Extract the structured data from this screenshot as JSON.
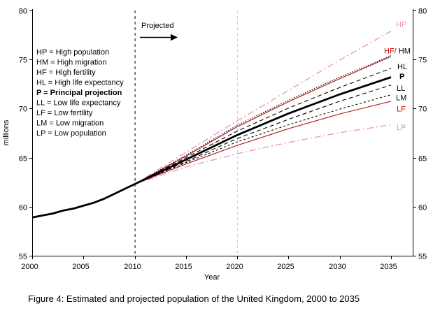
{
  "figure": {
    "caption": "Figure 4: Estimated and projected population of the United Kingdom, 2000 to 2035"
  },
  "colors": {
    "black": "#000000",
    "red_line": "#b22222",
    "red_label": "#cc0000",
    "pink": "#ef8fc0",
    "guide_2010": "#000000",
    "guide_2020": "#c8c8c8"
  },
  "chart_data": {
    "type": "line",
    "title": "",
    "xlabel": "Year",
    "ylabel": "millions",
    "xlim": [
      2000,
      2037
    ],
    "ylim": [
      55,
      80
    ],
    "xticks": [
      2000,
      2005,
      2010,
      2015,
      2020,
      2025,
      2030,
      2035
    ],
    "yticks": [
      55,
      60,
      65,
      70,
      75,
      80
    ],
    "grid": false,
    "annotations": {
      "projected_label": "Projected",
      "vlines": [
        {
          "year": 2010,
          "color_key": "guide_2010",
          "style": "dashed"
        },
        {
          "year": 2020,
          "color_key": "guide_2020",
          "style": "dashed"
        }
      ]
    },
    "legend_position": "upper-left-inside",
    "legend": [
      {
        "text": "HP = High population",
        "bold": false
      },
      {
        "text": "HM = High migration",
        "bold": false
      },
      {
        "text": "HF = High fertility",
        "bold": false
      },
      {
        "text": "HL = High life expectancy",
        "bold": false
      },
      {
        "text": "P = Principal projection",
        "bold": true
      },
      {
        "text": "LL = Low life expectancy",
        "bold": false
      },
      {
        "text": "LF = Low fertility",
        "bold": false
      },
      {
        "text": "LM = Low migration",
        "bold": false
      },
      {
        "text": "LP = Low population",
        "bold": false
      }
    ],
    "series": [
      {
        "name": "HP",
        "x": [
          2010,
          2015,
          2020,
          2025,
          2030,
          2035
        ],
        "values": [
          62.3,
          65.55,
          68.75,
          71.85,
          74.95,
          77.9
        ],
        "color_key": "pink",
        "line_style": "dash-dot",
        "width": 1.3
      },
      {
        "name": "LP",
        "x": [
          2010,
          2015,
          2020,
          2025,
          2030,
          2035
        ],
        "values": [
          62.3,
          64.05,
          65.4,
          66.55,
          67.55,
          68.35
        ],
        "color_key": "pink",
        "line_style": "dash-dot",
        "width": 1.3
      },
      {
        "name": "HF",
        "x": [
          2010,
          2015,
          2020,
          2025,
          2030,
          2035
        ],
        "values": [
          62.3,
          65.15,
          68.15,
          70.7,
          73.05,
          75.3
        ],
        "color_key": "red_line",
        "line_style": "solid",
        "width": 1.2
      },
      {
        "name": "LF",
        "x": [
          2010,
          2015,
          2020,
          2025,
          2030,
          2035
        ],
        "values": [
          62.3,
          64.35,
          66.25,
          67.95,
          69.45,
          70.75
        ],
        "color_key": "red_line",
        "line_style": "solid",
        "width": 1.2
      },
      {
        "name": "HM",
        "x": [
          2010,
          2015,
          2020,
          2025,
          2030,
          2035
        ],
        "values": [
          62.3,
          65.25,
          68.3,
          70.85,
          73.2,
          75.4
        ],
        "color_key": "black",
        "line_style": "dot",
        "width": 1.1
      },
      {
        "name": "HL",
        "x": [
          2010,
          2015,
          2020,
          2025,
          2030,
          2035
        ],
        "values": [
          62.3,
          65.0,
          67.7,
          70.05,
          72.15,
          74.1
        ],
        "color_key": "black",
        "line_style": "dash",
        "width": 1.1
      },
      {
        "name": "LL",
        "x": [
          2010,
          2015,
          2020,
          2025,
          2030,
          2035
        ],
        "values": [
          62.3,
          64.6,
          66.95,
          68.9,
          70.75,
          72.4
        ],
        "color_key": "black",
        "line_style": "dash",
        "width": 1.1
      },
      {
        "name": "LM",
        "x": [
          2010,
          2015,
          2020,
          2025,
          2030,
          2035
        ],
        "values": [
          62.3,
          64.5,
          66.6,
          68.35,
          69.95,
          71.4
        ],
        "color_key": "black",
        "line_style": "short-dash",
        "width": 1.1
      },
      {
        "name": "estimate",
        "x": [
          2000,
          2001,
          2002,
          2003,
          2004,
          2005,
          2006,
          2007,
          2008,
          2009,
          2010
        ],
        "values": [
          58.9,
          59.1,
          59.3,
          59.6,
          59.8,
          60.1,
          60.4,
          60.8,
          61.3,
          61.8,
          62.3
        ],
        "color_key": "black",
        "line_style": "solid",
        "width": 2.8
      },
      {
        "name": "P",
        "x": [
          2010,
          2015,
          2020,
          2025,
          2030,
          2035
        ],
        "values": [
          62.3,
          64.8,
          67.3,
          69.5,
          71.45,
          73.2
        ],
        "color_key": "black",
        "line_style": "solid",
        "width": 2.8
      }
    ],
    "right_labels": [
      {
        "parts": [
          {
            "text": "HP",
            "color_key": "pink"
          }
        ],
        "value": 78.6,
        "x": 566,
        "bold": false
      },
      {
        "parts": [
          {
            "text": "HF/",
            "color_key": "red_label"
          },
          {
            "text": " HM",
            "color_key": "black"
          }
        ],
        "value": 75.9,
        "x": 549,
        "bold": false
      },
      {
        "parts": [
          {
            "text": "HL",
            "color_key": "black"
          }
        ],
        "value": 74.3,
        "x": 568,
        "bold": false
      },
      {
        "parts": [
          {
            "text": "P",
            "color_key": "black"
          }
        ],
        "value": 73.3,
        "x": 571,
        "bold": true
      },
      {
        "parts": [
          {
            "text": "LL",
            "color_key": "black"
          }
        ],
        "value": 72.1,
        "x": 567,
        "bold": false
      },
      {
        "parts": [
          {
            "text": "LM",
            "color_key": "black"
          }
        ],
        "value": 71.15,
        "x": 566,
        "bold": false
      },
      {
        "parts": [
          {
            "text": "LF",
            "color_key": "red_label"
          }
        ],
        "value": 70.0,
        "x": 567,
        "bold": false
      },
      {
        "parts": [
          {
            "text": "LP",
            "color_key": "pink"
          }
        ],
        "value": 68.1,
        "x": 567,
        "bold": false
      }
    ]
  }
}
